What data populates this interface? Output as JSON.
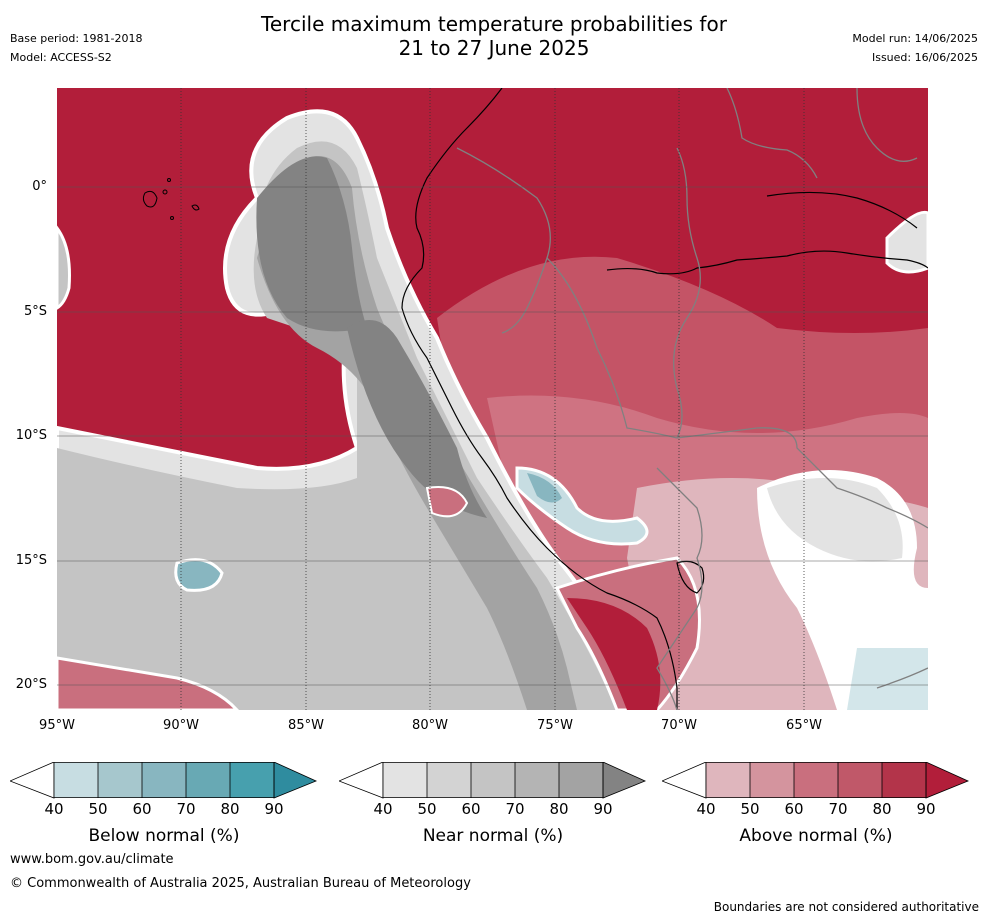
{
  "header": {
    "title_line1": "Tercile maximum temperature probabilities for",
    "title_line2": "21 to 27 June 2025",
    "base_period": "Base period: 1981-2018",
    "model": "Model: ACCESS-S2",
    "model_run": "Model run: 14/06/2025",
    "issued": "Issued: 16/06/2025"
  },
  "map": {
    "lat_labels": [
      "0°",
      "5°S",
      "10°S",
      "15°S",
      "20°S"
    ],
    "lon_labels": [
      "95°W",
      "90°W",
      "85°W",
      "80°W",
      "75°W",
      "70°W",
      "65°W"
    ],
    "colors": {
      "above_dark": "#b21e3a",
      "above_mid": "#c45466",
      "above_light": "#dfb6bd",
      "near_dark": "#838383",
      "near_mid": "#a9a9a9",
      "near_light": "#d8d8d8",
      "below": "#7eb3bf",
      "below_light": "#c7dde2"
    }
  },
  "legends": [
    {
      "label": "Below normal (%)",
      "ticks": [
        "40",
        "50",
        "60",
        "70",
        "80",
        "90"
      ],
      "colors": [
        "#c7dde2",
        "#a6c7cd",
        "#88b6c0",
        "#68a9b4",
        "#47a0ae",
        "#2f8c9f"
      ]
    },
    {
      "label": "Near normal (%)",
      "ticks": [
        "40",
        "50",
        "60",
        "70",
        "80",
        "90"
      ],
      "colors": [
        "#e3e3e3",
        "#d3d3d3",
        "#c4c4c4",
        "#b4b4b4",
        "#a3a3a3",
        "#838383"
      ]
    },
    {
      "label": "Above normal (%)",
      "ticks": [
        "40",
        "50",
        "60",
        "70",
        "80",
        "90"
      ],
      "colors": [
        "#dfb6bd",
        "#d4949e",
        "#c96f7e",
        "#c05869",
        "#b3344a",
        "#b21e3a"
      ]
    }
  ],
  "footer": {
    "website": "www.bom.gov.au/climate",
    "copyright": "© Commonwealth of Australia 2025, Australian Bureau of Meteorology",
    "disclaimer": "Boundaries are not considered authoritative"
  }
}
